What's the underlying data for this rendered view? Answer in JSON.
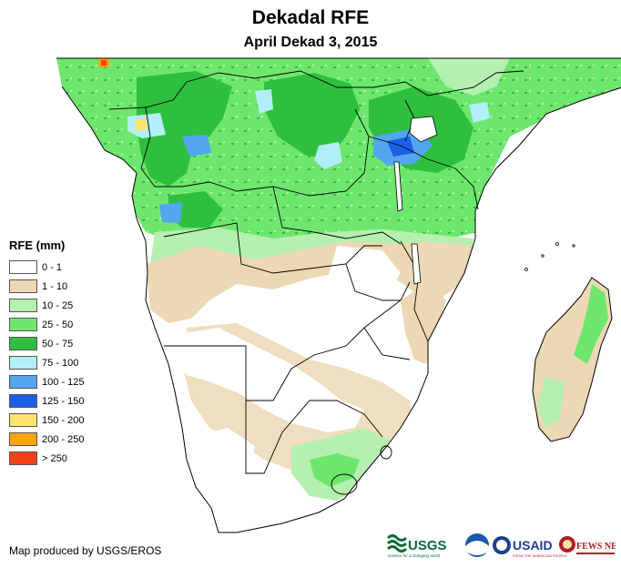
{
  "title": "Dekadal RFE",
  "subtitle": "April Dekad 3, 2015",
  "legend": {
    "title": "RFE (mm)",
    "items": [
      {
        "label": "0 - 1",
        "color": "#ffffff"
      },
      {
        "label": "1 - 10",
        "color": "#ecd8b4"
      },
      {
        "label": "10 - 25",
        "color": "#b5f0b0"
      },
      {
        "label": "25 - 50",
        "color": "#6ee66e"
      },
      {
        "label": "50 - 75",
        "color": "#2fbf3f"
      },
      {
        "label": "75 - 100",
        "color": "#b2eef7"
      },
      {
        "label": "100 - 125",
        "color": "#53a6ef"
      },
      {
        "label": "125 - 150",
        "color": "#1c5fe6"
      },
      {
        "label": "150 - 200",
        "color": "#fde36e"
      },
      {
        "label": "200 - 250",
        "color": "#fca410"
      },
      {
        "label": "> 250",
        "color": "#f5401a"
      }
    ]
  },
  "credit": "Map produced by USGS/EROS",
  "logos": {
    "usgs": "USGS",
    "usgs_tagline": "science for a changing world",
    "usaid": "USAID",
    "usaid_tagline": "FROM THE AMERICAN PEOPLE",
    "fewsnet": "FEWS NET"
  }
}
